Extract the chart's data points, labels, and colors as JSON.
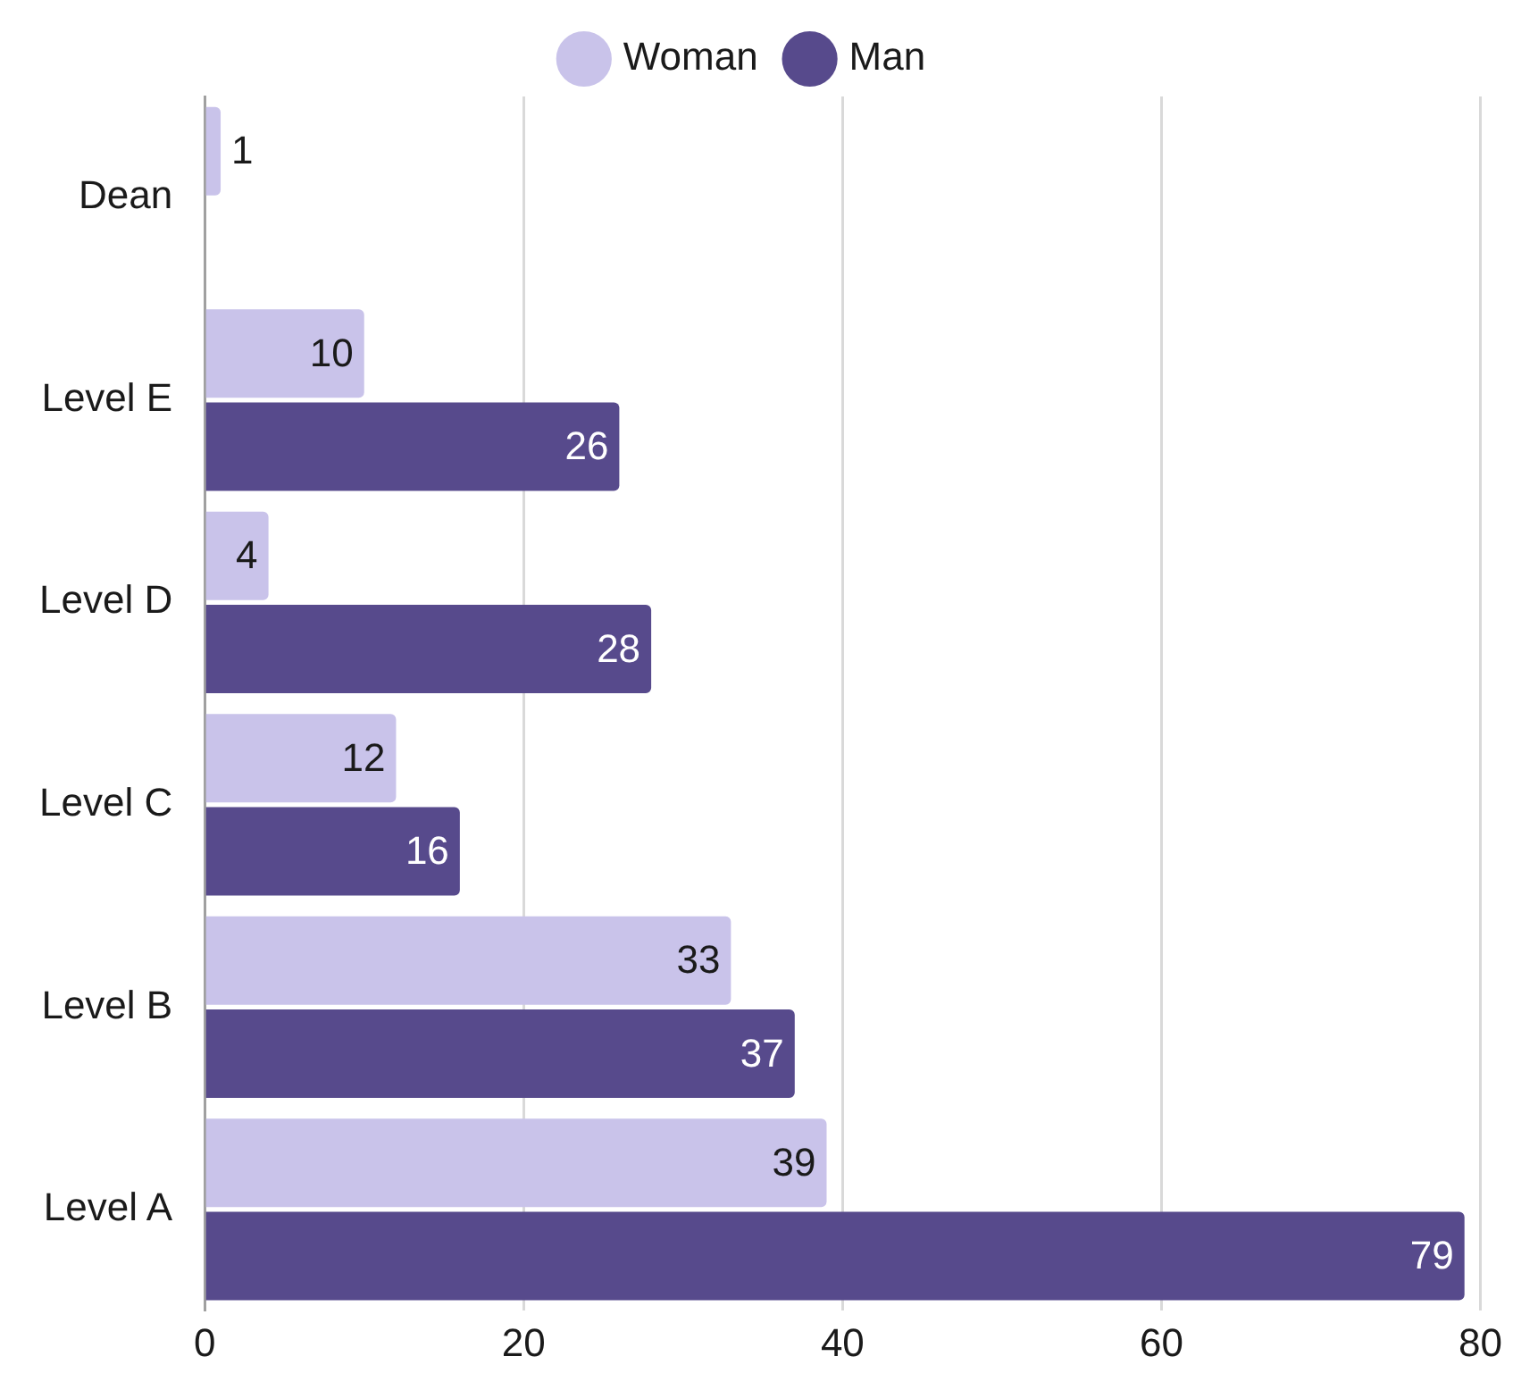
{
  "chart_data": {
    "type": "bar",
    "orientation": "horizontal",
    "categories": [
      "Dean",
      "Level E",
      "Level D",
      "Level C",
      "Level B",
      "Level A"
    ],
    "series": [
      {
        "name": "Woman",
        "color": "#c9c3ea",
        "values": [
          1,
          10,
          4,
          12,
          33,
          39
        ]
      },
      {
        "name": "Man",
        "color": "#574a8c",
        "values": [
          null,
          26,
          28,
          16,
          37,
          79
        ]
      }
    ],
    "xlim": [
      0,
      80
    ],
    "xticks": [
      0,
      20,
      40,
      60,
      80
    ],
    "grid": "x",
    "legend": "top",
    "data_labels": true
  }
}
